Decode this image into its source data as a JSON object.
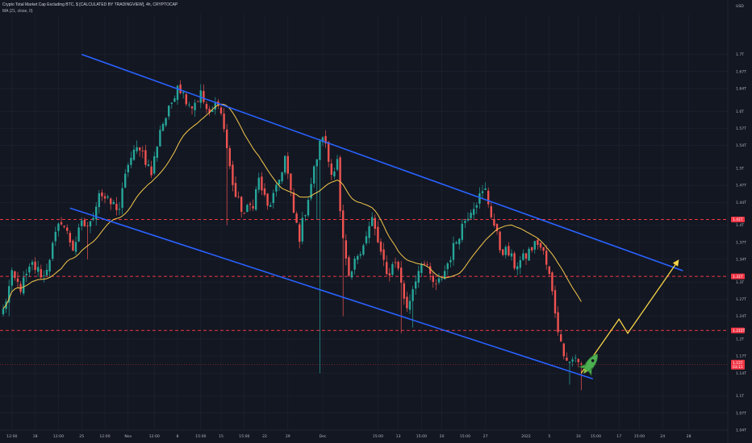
{
  "header": {
    "title": "Crypto Total Market Cap Excluding BTC, $ [CALCULATED BY TRADINGVIEW], 4h, CRYPTOCAP",
    "indicator": "MA (21, close, 0)"
  },
  "currency": "USD",
  "chart_data": {
    "type": "candlestick",
    "y_unit": "USD",
    "ylim": [
      1.04,
      1.77
    ],
    "y_ticks": [
      "1.7T",
      "1.67T",
      "1.64T",
      "1.6T",
      "1.57T",
      "1.54T",
      "1.5T",
      "1.47T",
      "1.44T",
      "1.4T",
      "1.37T",
      "1.34T",
      "1.3T",
      "1.27T",
      "1.24T",
      "1.2T",
      "1.17T",
      "1.14T",
      "1.1T",
      "1.07T",
      "1.04T"
    ],
    "y_tick_values": [
      1.7,
      1.67,
      1.64,
      1.6,
      1.57,
      1.54,
      1.5,
      1.47,
      1.44,
      1.4,
      1.37,
      1.34,
      1.3,
      1.27,
      1.24,
      1.2,
      1.17,
      1.14,
      1.1,
      1.07,
      1.04
    ],
    "x_ticks": [
      {
        "label": "12:00",
        "i": 3
      },
      {
        "label": "18",
        "i": 11
      },
      {
        "label": "12:00",
        "i": 19
      },
      {
        "label": "25",
        "i": 27
      },
      {
        "label": "12:00",
        "i": 35
      },
      {
        "label": "Nov",
        "i": 43
      },
      {
        "label": "12:00",
        "i": 52
      },
      {
        "label": "8",
        "i": 60
      },
      {
        "label": "15:00",
        "i": 68
      },
      {
        "label": "15",
        "i": 75
      },
      {
        "label": "15:00",
        "i": 83
      },
      {
        "label": "22",
        "i": 90
      },
      {
        "label": "29",
        "i": 98
      },
      {
        "label": "Dec",
        "i": 110
      },
      {
        "label": "15:00",
        "i": 129
      },
      {
        "label": "13",
        "i": 136
      },
      {
        "label": "15:00",
        "i": 144
      },
      {
        "label": "20",
        "i": 151
      },
      {
        "label": "15:00",
        "i": 159
      },
      {
        "label": "27",
        "i": 166
      },
      {
        "label": "2022",
        "i": 180
      },
      {
        "label": "5",
        "i": 188
      },
      {
        "label": "10",
        "i": 198
      },
      {
        "label": "15:00",
        "i": 204
      },
      {
        "label": "17",
        "i": 212
      },
      {
        "label": "15:00",
        "i": 219
      },
      {
        "label": "24",
        "i": 227
      },
      {
        "label": "28",
        "i": 236
      }
    ],
    "bars": 200,
    "anchors": [
      [
        0,
        1.25
      ],
      [
        3,
        1.31
      ],
      [
        6,
        1.29
      ],
      [
        10,
        1.33
      ],
      [
        14,
        1.31
      ],
      [
        18,
        1.38
      ],
      [
        20,
        1.41
      ],
      [
        24,
        1.36
      ],
      [
        27,
        1.4
      ],
      [
        30,
        1.4
      ],
      [
        33,
        1.46
      ],
      [
        36,
        1.44
      ],
      [
        40,
        1.43
      ],
      [
        43,
        1.51
      ],
      [
        47,
        1.54
      ],
      [
        51,
        1.49
      ],
      [
        54,
        1.57
      ],
      [
        57,
        1.6
      ],
      [
        60,
        1.65
      ],
      [
        62,
        1.63
      ],
      [
        65,
        1.61
      ],
      [
        68,
        1.63
      ],
      [
        71,
        1.59
      ],
      [
        74,
        1.62
      ],
      [
        76,
        1.57
      ],
      [
        78,
        1.5
      ],
      [
        80,
        1.45
      ],
      [
        83,
        1.42
      ],
      [
        86,
        1.44
      ],
      [
        88,
        1.48
      ],
      [
        91,
        1.43
      ],
      [
        94,
        1.46
      ],
      [
        97,
        1.52
      ],
      [
        100,
        1.42
      ],
      [
        102,
        1.38
      ],
      [
        105,
        1.45
      ],
      [
        108,
        1.52
      ],
      [
        110,
        1.56
      ],
      [
        113,
        1.49
      ],
      [
        115,
        1.52
      ],
      [
        116,
        1.42
      ],
      [
        117,
        1.37
      ],
      [
        119,
        1.3
      ],
      [
        122,
        1.35
      ],
      [
        125,
        1.38
      ],
      [
        127,
        1.41
      ],
      [
        129,
        1.37
      ],
      [
        132,
        1.31
      ],
      [
        135,
        1.34
      ],
      [
        137,
        1.3
      ],
      [
        139,
        1.25
      ],
      [
        141,
        1.29
      ],
      [
        144,
        1.34
      ],
      [
        147,
        1.31
      ],
      [
        149,
        1.29
      ],
      [
        152,
        1.32
      ],
      [
        155,
        1.36
      ],
      [
        158,
        1.4
      ],
      [
        161,
        1.43
      ],
      [
        164,
        1.45
      ],
      [
        166,
        1.46
      ],
      [
        168,
        1.42
      ],
      [
        171,
        1.36
      ],
      [
        174,
        1.35
      ],
      [
        176,
        1.33
      ],
      [
        179,
        1.34
      ],
      [
        182,
        1.36
      ],
      [
        184,
        1.37
      ],
      [
        186,
        1.35
      ],
      [
        188,
        1.31
      ],
      [
        190,
        1.25
      ],
      [
        192,
        1.19
      ],
      [
        195,
        1.16
      ],
      [
        197,
        1.17
      ],
      [
        199,
        1.14
      ]
    ],
    "spikes": [
      {
        "i": 29,
        "low": 1.34
      },
      {
        "i": 109,
        "low": 1.14
      },
      {
        "i": 117,
        "low": 1.24
      },
      {
        "i": 108,
        "high": 1.41
      },
      {
        "i": 141,
        "low": 1.22
      },
      {
        "i": 137,
        "low": 1.21
      },
      {
        "i": 2,
        "low": 1.24
      },
      {
        "i": 77,
        "low": 1.4
      },
      {
        "i": 195,
        "low": 1.12
      },
      {
        "i": 199,
        "low": 1.11
      }
    ],
    "ma_period": 21,
    "colors": {
      "up": "#26a69a",
      "down": "#ef5350",
      "ma": "#f5c84c",
      "channel": "#2962ff",
      "level": "#f23645",
      "projection": "#f7d448",
      "rocket": "#4caf50",
      "badge": "#f23645",
      "current": "#f23645"
    },
    "channel_upper": [
      [
        27,
        1.7
      ],
      [
        234,
        1.32
      ]
    ],
    "channel_lower": [
      [
        23,
        1.43
      ],
      [
        203,
        1.13
      ]
    ],
    "levels": [
      {
        "value": 1.41,
        "label": "1.41T"
      },
      {
        "value": 1.31,
        "label": "1.31T"
      },
      {
        "value": 1.215,
        "label": "1.215T"
      }
    ],
    "current": {
      "value": 1.155,
      "label": "1.15T",
      "sub": "03:11"
    },
    "projection": [
      [
        199,
        1.14
      ],
      [
        212,
        1.235
      ],
      [
        215,
        1.21
      ],
      [
        232,
        1.335
      ]
    ],
    "grid": true
  }
}
